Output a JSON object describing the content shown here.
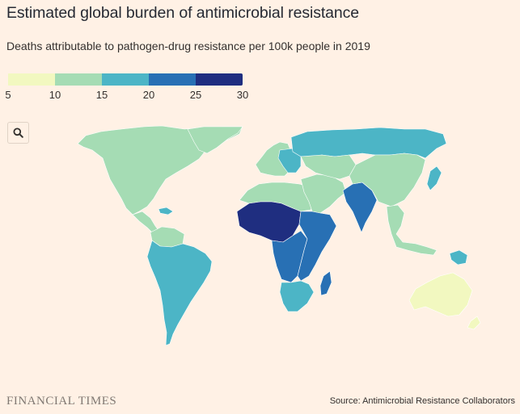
{
  "header": {
    "title": "Estimated global burden of antimicrobial resistance",
    "subtitle": "Deaths attributable to pathogen-drug resistance per 100k people in 2019"
  },
  "legend": {
    "ticks": [
      "5",
      "10",
      "15",
      "20",
      "25",
      "30"
    ],
    "bins": [
      {
        "range": [
          5,
          10
        ],
        "color": "#f2f8c0"
      },
      {
        "range": [
          10,
          15
        ],
        "color": "#a5dcb4"
      },
      {
        "range": [
          15,
          20
        ],
        "color": "#4cb5c6"
      },
      {
        "range": [
          20,
          25
        ],
        "color": "#2870b4"
      },
      {
        "range": [
          25,
          30
        ],
        "color": "#1f2e80"
      }
    ]
  },
  "controls": {
    "zoom_icon": "search-icon"
  },
  "map": {
    "regions": [
      {
        "name": "North America",
        "bin": 1
      },
      {
        "name": "Greenland",
        "bin": 1
      },
      {
        "name": "Central America",
        "bin": 1
      },
      {
        "name": "Caribbean",
        "bin": 2
      },
      {
        "name": "Northern South America",
        "bin": 1
      },
      {
        "name": "South America",
        "bin": 2
      },
      {
        "name": "Europe",
        "bin": 1
      },
      {
        "name": "Eastern Europe",
        "bin": 2
      },
      {
        "name": "Russia",
        "bin": 2
      },
      {
        "name": "North Africa",
        "bin": 1
      },
      {
        "name": "Middle East",
        "bin": 1
      },
      {
        "name": "Central Asia",
        "bin": 1
      },
      {
        "name": "West Africa",
        "bin": 4
      },
      {
        "name": "Central Africa",
        "bin": 3
      },
      {
        "name": "East Africa",
        "bin": 3
      },
      {
        "name": "Southern Africa",
        "bin": 2
      },
      {
        "name": "Madagascar",
        "bin": 3
      },
      {
        "name": "South Asia",
        "bin": 3
      },
      {
        "name": "China",
        "bin": 1
      },
      {
        "name": "Japan",
        "bin": 2
      },
      {
        "name": "Southeast Asia",
        "bin": 1
      },
      {
        "name": "Papua New Guinea",
        "bin": 2
      },
      {
        "name": "Australia",
        "bin": 0
      },
      {
        "name": "New Zealand",
        "bin": 0
      }
    ]
  },
  "footer": {
    "brand": "FINANCIAL TIMES",
    "source": "Source: Antimicrobial Resistance Collaborators"
  }
}
